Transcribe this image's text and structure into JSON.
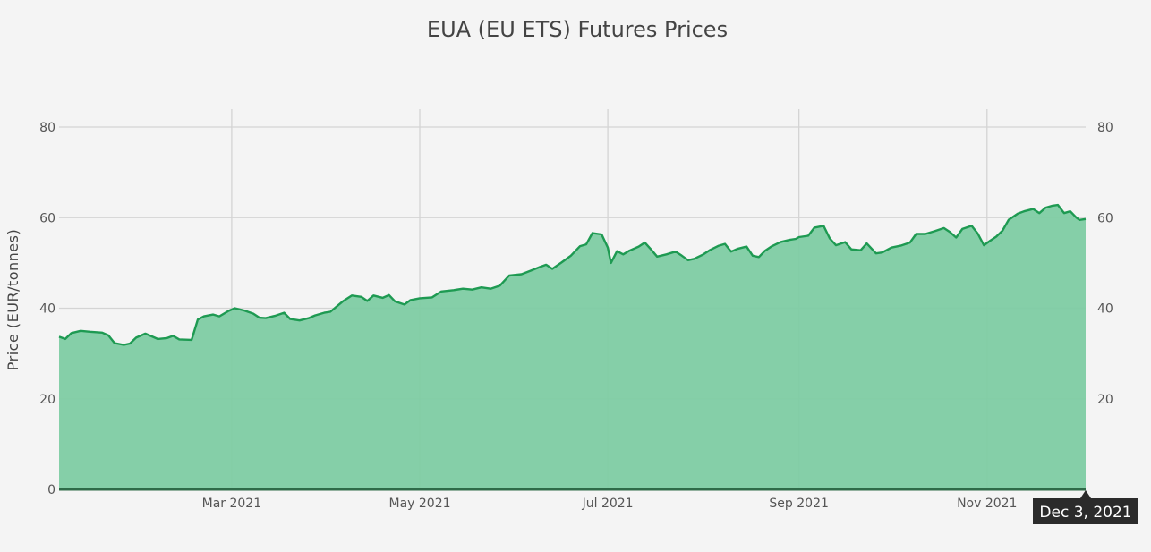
{
  "chart_data": {
    "type": "area",
    "title": "EUA (EU ETS) Futures Prices",
    "xlabel": "",
    "ylabel": "Price (EUR/tonnes)",
    "x_range": [
      "2021-01-04",
      "2021-12-03"
    ],
    "ylim": [
      0,
      80
    ],
    "y_ticks": [
      0,
      20,
      40,
      60,
      80
    ],
    "y2_ticks": [
      20,
      40,
      60,
      80
    ],
    "x_ticks": [
      {
        "date": "2021-03-01",
        "label": "Mar 2021"
      },
      {
        "date": "2021-05-01",
        "label": "May 2021"
      },
      {
        "date": "2021-07-01",
        "label": "Jul 2021"
      },
      {
        "date": "2021-09-01",
        "label": "Sep 2021"
      },
      {
        "date": "2021-11-01",
        "label": "Nov 2021"
      }
    ],
    "grid": true,
    "colors": {
      "line": "#1e9a52",
      "fill": "#7ecca3",
      "baseline": "#2f6b49"
    },
    "hover_label": "Dec 3, 2021",
    "series": [
      {
        "points": [
          [
            "2021-01-04",
            33.7
          ],
          [
            "2021-01-06",
            33.2
          ],
          [
            "2021-01-08",
            34.5
          ],
          [
            "2021-01-11",
            35.0
          ],
          [
            "2021-01-14",
            34.8
          ],
          [
            "2021-01-18",
            34.6
          ],
          [
            "2021-01-20",
            34.0
          ],
          [
            "2021-01-22",
            32.3
          ],
          [
            "2021-01-25",
            31.9
          ],
          [
            "2021-01-27",
            32.2
          ],
          [
            "2021-01-29",
            33.5
          ],
          [
            "2021-02-01",
            34.4
          ],
          [
            "2021-02-03",
            33.8
          ],
          [
            "2021-02-05",
            33.2
          ],
          [
            "2021-02-08",
            33.4
          ],
          [
            "2021-02-10",
            33.9
          ],
          [
            "2021-02-12",
            33.1
          ],
          [
            "2021-02-16",
            33.0
          ],
          [
            "2021-02-18",
            37.5
          ],
          [
            "2021-02-20",
            38.2
          ],
          [
            "2021-02-23",
            38.6
          ],
          [
            "2021-02-25",
            38.2
          ],
          [
            "2021-02-28",
            39.4
          ],
          [
            "2021-03-02",
            40.0
          ],
          [
            "2021-03-05",
            39.5
          ],
          [
            "2021-03-08",
            38.8
          ],
          [
            "2021-03-10",
            37.9
          ],
          [
            "2021-03-12",
            37.8
          ],
          [
            "2021-03-15",
            38.3
          ],
          [
            "2021-03-18",
            39.0
          ],
          [
            "2021-03-20",
            37.6
          ],
          [
            "2021-03-23",
            37.3
          ],
          [
            "2021-03-26",
            37.8
          ],
          [
            "2021-03-28",
            38.4
          ],
          [
            "2021-03-31",
            39.0
          ],
          [
            "2021-04-02",
            39.2
          ],
          [
            "2021-04-06",
            41.5
          ],
          [
            "2021-04-09",
            42.8
          ],
          [
            "2021-04-12",
            42.5
          ],
          [
            "2021-04-14",
            41.6
          ],
          [
            "2021-04-16",
            42.8
          ],
          [
            "2021-04-19",
            42.3
          ],
          [
            "2021-04-21",
            42.9
          ],
          [
            "2021-04-23",
            41.5
          ],
          [
            "2021-04-26",
            40.8
          ],
          [
            "2021-04-28",
            41.8
          ],
          [
            "2021-05-01",
            42.2
          ],
          [
            "2021-05-05",
            42.4
          ],
          [
            "2021-05-08",
            43.7
          ],
          [
            "2021-05-12",
            44.0
          ],
          [
            "2021-05-15",
            44.3
          ],
          [
            "2021-05-18",
            44.1
          ],
          [
            "2021-05-21",
            44.6
          ],
          [
            "2021-05-24",
            44.3
          ],
          [
            "2021-05-27",
            45.0
          ],
          [
            "2021-05-30",
            47.2
          ],
          [
            "2021-06-03",
            47.5
          ],
          [
            "2021-06-06",
            48.3
          ],
          [
            "2021-06-09",
            49.1
          ],
          [
            "2021-06-11",
            49.6
          ],
          [
            "2021-06-13",
            48.7
          ],
          [
            "2021-06-16",
            50.1
          ],
          [
            "2021-06-19",
            51.6
          ],
          [
            "2021-06-22",
            53.7
          ],
          [
            "2021-06-24",
            54.1
          ],
          [
            "2021-06-26",
            56.6
          ],
          [
            "2021-06-29",
            56.3
          ],
          [
            "2021-07-01",
            53.4
          ],
          [
            "2021-07-02",
            50.0
          ],
          [
            "2021-07-04",
            52.6
          ],
          [
            "2021-07-06",
            51.9
          ],
          [
            "2021-07-08",
            52.7
          ],
          [
            "2021-07-11",
            53.6
          ],
          [
            "2021-07-13",
            54.5
          ],
          [
            "2021-07-15",
            53.0
          ],
          [
            "2021-07-17",
            51.4
          ],
          [
            "2021-07-20",
            51.9
          ],
          [
            "2021-07-23",
            52.5
          ],
          [
            "2021-07-25",
            51.6
          ],
          [
            "2021-07-27",
            50.6
          ],
          [
            "2021-07-29",
            50.9
          ],
          [
            "2021-08-01",
            51.9
          ],
          [
            "2021-08-03",
            52.8
          ],
          [
            "2021-08-06",
            53.8
          ],
          [
            "2021-08-08",
            54.2
          ],
          [
            "2021-08-10",
            52.5
          ],
          [
            "2021-08-12",
            53.1
          ],
          [
            "2021-08-15",
            53.6
          ],
          [
            "2021-08-17",
            51.6
          ],
          [
            "2021-08-19",
            51.3
          ],
          [
            "2021-08-21",
            52.7
          ],
          [
            "2021-08-23",
            53.6
          ],
          [
            "2021-08-26",
            54.6
          ],
          [
            "2021-08-29",
            55.1
          ],
          [
            "2021-08-31",
            55.3
          ],
          [
            "2021-09-01",
            55.7
          ],
          [
            "2021-09-04",
            56.0
          ],
          [
            "2021-09-06",
            57.8
          ],
          [
            "2021-09-09",
            58.2
          ],
          [
            "2021-09-11",
            55.4
          ],
          [
            "2021-09-13",
            53.9
          ],
          [
            "2021-09-16",
            54.6
          ],
          [
            "2021-09-18",
            53.0
          ],
          [
            "2021-09-21",
            52.8
          ],
          [
            "2021-09-23",
            54.3
          ],
          [
            "2021-09-26",
            52.1
          ],
          [
            "2021-09-28",
            52.3
          ],
          [
            "2021-10-01",
            53.4
          ],
          [
            "2021-10-04",
            53.8
          ],
          [
            "2021-10-07",
            54.5
          ],
          [
            "2021-10-09",
            56.4
          ],
          [
            "2021-10-12",
            56.4
          ],
          [
            "2021-10-15",
            57.0
          ],
          [
            "2021-10-18",
            57.7
          ],
          [
            "2021-10-20",
            56.8
          ],
          [
            "2021-10-22",
            55.6
          ],
          [
            "2021-10-24",
            57.5
          ],
          [
            "2021-10-27",
            58.2
          ],
          [
            "2021-10-29",
            56.5
          ],
          [
            "2021-10-31",
            53.9
          ],
          [
            "2021-11-02",
            54.9
          ],
          [
            "2021-11-04",
            55.8
          ],
          [
            "2021-11-06",
            57.1
          ],
          [
            "2021-11-08",
            59.5
          ],
          [
            "2021-11-11",
            60.9
          ],
          [
            "2021-11-13",
            61.4
          ],
          [
            "2021-11-16",
            61.9
          ],
          [
            "2021-11-18",
            61.0
          ],
          [
            "2021-11-20",
            62.2
          ],
          [
            "2021-11-22",
            62.6
          ],
          [
            "2021-11-24",
            62.8
          ],
          [
            "2021-11-26",
            61.0
          ],
          [
            "2021-11-28",
            61.4
          ],
          [
            "2021-11-30",
            60.0
          ],
          [
            "2021-12-01",
            59.5
          ],
          [
            "2021-12-03",
            59.7
          ]
        ]
      }
    ]
  }
}
